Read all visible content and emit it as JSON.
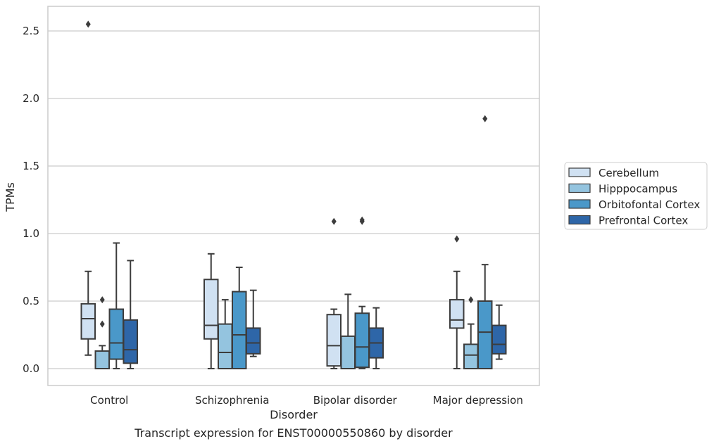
{
  "chart_data": {
    "type": "box",
    "title": "",
    "caption": "Transcript expression for ENST00000550860 by disorder",
    "xlabel": "Disorder",
    "ylabel": "TPMs",
    "ylim": [
      -0.12,
      2.68
    ],
    "yticks": [
      "0.0",
      "0.5",
      "1.0",
      "1.5",
      "2.0",
      "2.5"
    ],
    "ytick_values": [
      0,
      0.5,
      1.0,
      1.5,
      2.0,
      2.5
    ],
    "grid": "horizontal",
    "legend_position": "right",
    "categories": [
      "Control",
      "Schizophrenia",
      "Bipolar disorder",
      "Major depression"
    ],
    "series": [
      {
        "name": "Cerebellum",
        "color": "#d0e1f2",
        "boxes": [
          {
            "whisker_low": 0.1,
            "q1": 0.22,
            "median": 0.37,
            "q3": 0.48,
            "whisker_high": 0.72,
            "outliers": [
              2.55
            ]
          },
          {
            "whisker_low": 0.0,
            "q1": 0.22,
            "median": 0.32,
            "q3": 0.66,
            "whisker_high": 0.85,
            "outliers": []
          },
          {
            "whisker_low": 0.0,
            "q1": 0.02,
            "median": 0.17,
            "q3": 0.4,
            "whisker_high": 0.44,
            "outliers": [
              1.09
            ]
          },
          {
            "whisker_low": 0.0,
            "q1": 0.3,
            "median": 0.36,
            "q3": 0.51,
            "whisker_high": 0.72,
            "outliers": [
              0.96
            ]
          }
        ]
      },
      {
        "name": "Hipppocampus",
        "color": "#94c4df",
        "boxes": [
          {
            "whisker_low": 0.0,
            "q1": 0.0,
            "median": 0.0,
            "q3": 0.13,
            "whisker_high": 0.17,
            "outliers": [
              0.51,
              0.33
            ]
          },
          {
            "whisker_low": 0.0,
            "q1": 0.0,
            "median": 0.12,
            "q3": 0.33,
            "whisker_high": 0.51,
            "outliers": []
          },
          {
            "whisker_low": 0.0,
            "q1": 0.0,
            "median": 0.0,
            "q3": 0.24,
            "whisker_high": 0.55,
            "outliers": []
          },
          {
            "whisker_low": 0.0,
            "q1": 0.0,
            "median": 0.1,
            "q3": 0.18,
            "whisker_high": 0.33,
            "outliers": [
              0.51
            ]
          }
        ]
      },
      {
        "name": "Orbitofontal Cortex",
        "color": "#4a98c9",
        "boxes": [
          {
            "whisker_low": 0.0,
            "q1": 0.07,
            "median": 0.19,
            "q3": 0.44,
            "whisker_high": 0.93,
            "outliers": []
          },
          {
            "whisker_low": 0.0,
            "q1": 0.0,
            "median": 0.25,
            "q3": 0.57,
            "whisker_high": 0.75,
            "outliers": []
          },
          {
            "whisker_low": 0.0,
            "q1": 0.01,
            "median": 0.16,
            "q3": 0.41,
            "whisker_high": 0.46,
            "outliers": [
              1.09,
              1.1
            ]
          },
          {
            "whisker_low": 0.0,
            "q1": 0.0,
            "median": 0.27,
            "q3": 0.5,
            "whisker_high": 0.77,
            "outliers": [
              1.85
            ]
          }
        ]
      },
      {
        "name": "Prefrontal Cortex",
        "color": "#2e66a8",
        "boxes": [
          {
            "whisker_low": 0.0,
            "q1": 0.04,
            "median": 0.14,
            "q3": 0.36,
            "whisker_high": 0.8,
            "outliers": []
          },
          {
            "whisker_low": 0.09,
            "q1": 0.11,
            "median": 0.19,
            "q3": 0.3,
            "whisker_high": 0.58,
            "outliers": []
          },
          {
            "whisker_low": 0.0,
            "q1": 0.08,
            "median": 0.19,
            "q3": 0.3,
            "whisker_high": 0.45,
            "outliers": []
          },
          {
            "whisker_low": 0.07,
            "q1": 0.11,
            "median": 0.18,
            "q3": 0.32,
            "whisker_high": 0.47,
            "outliers": []
          }
        ]
      }
    ]
  }
}
